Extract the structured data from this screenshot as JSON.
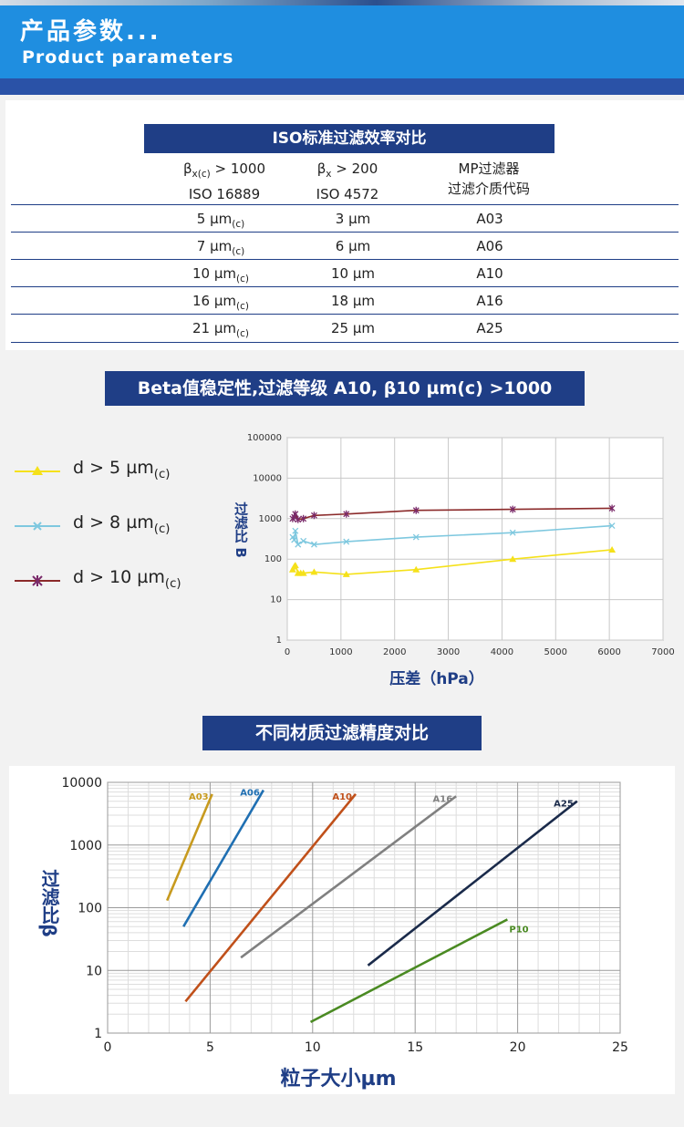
{
  "header": {
    "title_cn": "产品参数...",
    "title_en": "Product parameters"
  },
  "iso_table": {
    "title": "ISO标准过滤效率对比",
    "headers": [
      {
        "line1_sym": "β",
        "line1_sub": "x(c)",
        "line1_rest": " > 1000",
        "line2": "ISO 16889"
      },
      {
        "line1_sym": "β",
        "line1_sub": "x",
        "line1_rest": " > 200",
        "line2": "ISO 4572"
      },
      {
        "line1": "MP过滤器",
        "line2": "过滤介质代码"
      }
    ],
    "rows": [
      {
        "c1": "5 µm",
        "c1_sub": "(c)",
        "c2": "3 µm",
        "c3": "A03"
      },
      {
        "c1": "7 µm",
        "c1_sub": "(c)",
        "c2": "6 µm",
        "c3": "A06"
      },
      {
        "c1": "10 µm",
        "c1_sub": "(c)",
        "c2": "10 µm",
        "c3": "A10"
      },
      {
        "c1": "16 µm",
        "c1_sub": "(c)",
        "c2": "18 µm",
        "c3": "A16"
      },
      {
        "c1": "21 µm",
        "c1_sub": "(c)",
        "c2": "25 µm",
        "c3": "A25"
      }
    ]
  },
  "chart_data": [
    {
      "type": "line",
      "title": "Beta值稳定性,过滤等级 A10, β10 µm(c) >1000",
      "xlabel": "压差（hPa）",
      "ylabel": "过滤比 B",
      "xlim": [
        0,
        7000
      ],
      "ylim": [
        1,
        100000
      ],
      "yscale": "log",
      "grid": true,
      "legend_position": "left",
      "xticks": [
        "0",
        "1000",
        "2000",
        "3000",
        "4000",
        "5000",
        "6000",
        "7000"
      ],
      "yticks": [
        "1",
        "10",
        "100",
        "1000",
        "10000",
        "100000"
      ],
      "series": [
        {
          "name": "d > 5 µm",
          "name_sub": "(c)",
          "color": "#f5e11a",
          "marker": "triangle",
          "points": [
            [
              100,
              55
            ],
            [
              130,
              65
            ],
            [
              150,
              70
            ],
            [
              200,
              45
            ],
            [
              250,
              45
            ],
            [
              300,
              45
            ],
            [
              500,
              48
            ],
            [
              1100,
              42
            ],
            [
              2400,
              55
            ],
            [
              4200,
              100
            ],
            [
              6050,
              170
            ]
          ]
        },
        {
          "name": "d > 8 µm",
          "name_sub": "(c)",
          "color": "#7ec8df",
          "marker": "x",
          "points": [
            [
              100,
              350
            ],
            [
              130,
              300
            ],
            [
              150,
              500
            ],
            [
              200,
              230
            ],
            [
              300,
              280
            ],
            [
              500,
              230
            ],
            [
              1100,
              270
            ],
            [
              2400,
              350
            ],
            [
              4200,
              450
            ],
            [
              6050,
              670
            ]
          ]
        },
        {
          "name": "d > 10 µm",
          "name_sub": "(c)",
          "color": "#8b2a2a",
          "marker": "star",
          "points": [
            [
              100,
              1000
            ],
            [
              130,
              1100
            ],
            [
              150,
              1300
            ],
            [
              200,
              950
            ],
            [
              300,
              1000
            ],
            [
              500,
              1200
            ],
            [
              1100,
              1300
            ],
            [
              2400,
              1600
            ],
            [
              4200,
              1700
            ],
            [
              6050,
              1800
            ]
          ]
        }
      ]
    },
    {
      "type": "line",
      "title": "不同材质过滤精度对比",
      "xlabel": "粒子大小µm",
      "ylabel": "过滤比β",
      "xlim": [
        0,
        25
      ],
      "ylim": [
        1,
        10000
      ],
      "yscale": "log",
      "grid": true,
      "xticks": [
        "0",
        "5",
        "10",
        "15",
        "20",
        "25"
      ],
      "yticks": [
        "1",
        "10",
        "100",
        "1000",
        "10000"
      ],
      "series": [
        {
          "name": "A03",
          "color": "#c79a1e",
          "points": [
            [
              2.9,
              130
            ],
            [
              5.1,
              6500
            ]
          ]
        },
        {
          "name": "A06",
          "color": "#1f6fb2",
          "points": [
            [
              3.7,
              50
            ],
            [
              7.6,
              7500
            ]
          ]
        },
        {
          "name": "A10",
          "color": "#c0501a",
          "points": [
            [
              3.8,
              3.2
            ],
            [
              12.1,
              6500
            ]
          ]
        },
        {
          "name": "A16",
          "color": "#808080",
          "points": [
            [
              6.5,
              16
            ],
            [
              17,
              6000
            ]
          ]
        },
        {
          "name": "A25",
          "color": "#1a2a4a",
          "points": [
            [
              12.7,
              12
            ],
            [
              22.9,
              5000
            ]
          ]
        },
        {
          "name": "P10",
          "color": "#4a8a22",
          "points": [
            [
              9.9,
              1.5
            ],
            [
              19.5,
              65
            ]
          ]
        }
      ]
    }
  ]
}
